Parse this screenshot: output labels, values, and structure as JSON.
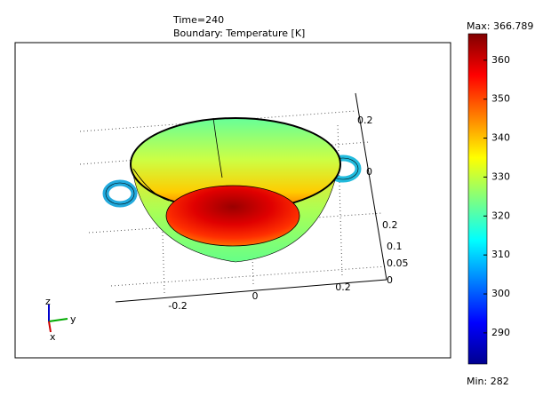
{
  "header": {
    "title": "Time=240",
    "subtitle": "Boundary: Temperature [K]"
  },
  "colorbar": {
    "max": {
      "value": 366.789,
      "label": "Max: 366.789"
    },
    "min": {
      "value": 282,
      "label": "Min: 282"
    },
    "ticks": [
      290,
      300,
      310,
      320,
      330,
      340,
      350,
      360
    ]
  },
  "axes": {
    "x_ticks": [
      -0.2,
      0,
      0.2
    ],
    "y_ticks": [
      0.2,
      0
    ],
    "z_ticks": [
      0.2,
      0.1,
      0.05,
      0
    ],
    "triad": [
      "z",
      "y",
      "x"
    ]
  }
}
